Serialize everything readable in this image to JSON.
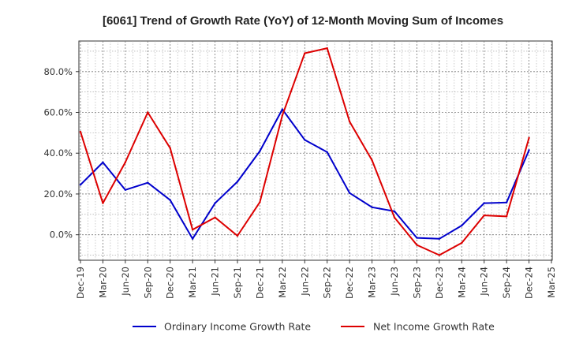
{
  "chart_data": {
    "type": "line",
    "title": "[6061]  Trend of Growth Rate (YoY) of 12-Month Moving Sum of Incomes",
    "xlabel": "",
    "ylabel": "",
    "categories": [
      "Dec-19",
      "Mar-20",
      "Jun-20",
      "Sep-20",
      "Dec-20",
      "Mar-21",
      "Jun-21",
      "Sep-21",
      "Dec-21",
      "Mar-22",
      "Jun-22",
      "Sep-22",
      "Dec-22",
      "Mar-23",
      "Jun-23",
      "Sep-23",
      "Dec-23",
      "Mar-24",
      "Jun-24",
      "Sep-24",
      "Dec-24",
      "Mar-25"
    ],
    "ylim": [
      -12.5,
      95
    ],
    "yticks": [
      0,
      20,
      40,
      60,
      80
    ],
    "ytick_labels": [
      "0.0%",
      "20.0%",
      "40.0%",
      "60.0%",
      "80.0%"
    ],
    "grid": true,
    "legend_position": "bottom",
    "series": [
      {
        "name": "Ordinary Income Growth Rate",
        "color": "#0000cc",
        "values": [
          24.5,
          35.5,
          22.0,
          25.5,
          17.0,
          -2.0,
          15.5,
          26.0,
          41.0,
          61.5,
          46.5,
          40.5,
          20.5,
          13.5,
          11.5,
          -1.5,
          -2.0,
          4.5,
          15.5,
          15.8,
          41.5,
          null
        ]
      },
      {
        "name": "Net Income Growth Rate",
        "color": "#dd0000",
        "values": [
          50.5,
          15.5,
          35.5,
          60.0,
          42.5,
          2.5,
          8.5,
          -0.5,
          16.0,
          58.5,
          89.0,
          91.5,
          55.5,
          36.5,
          8.5,
          -5.0,
          -10.0,
          -4.0,
          9.5,
          9.0,
          47.5,
          null
        ]
      }
    ]
  }
}
